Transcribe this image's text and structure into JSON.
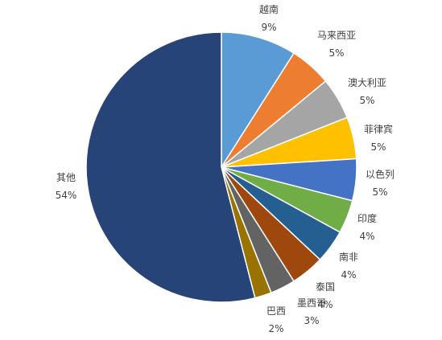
{
  "chart_data": {
    "type": "pie",
    "title": "",
    "slices": [
      {
        "label": "越南",
        "value": 9,
        "value_label": "9%",
        "color": "#5B9BD5"
      },
      {
        "label": "马来西亚",
        "value": 5,
        "value_label": "5%",
        "color": "#ED7D31"
      },
      {
        "label": "澳大利亚",
        "value": 5,
        "value_label": "5%",
        "color": "#A5A5A5"
      },
      {
        "label": "菲律宾",
        "value": 5,
        "value_label": "5%",
        "color": "#FFC000"
      },
      {
        "label": "以色列",
        "value": 5,
        "value_label": "5%",
        "color": "#4472C4"
      },
      {
        "label": "印度",
        "value": 4,
        "value_label": "4%",
        "color": "#70AD47"
      },
      {
        "label": "南非",
        "value": 4,
        "value_label": "4%",
        "color": "#255E91"
      },
      {
        "label": "泰国",
        "value": 4,
        "value_label": "4%",
        "color": "#9E480E"
      },
      {
        "label": "墨西哥",
        "value": 3,
        "value_label": "3%",
        "color": "#636363"
      },
      {
        "label": "巴西",
        "value": 2,
        "value_label": "2%",
        "color": "#997300"
      },
      {
        "label": "其他",
        "value": 54,
        "value_label": "54%",
        "color": "#264478"
      }
    ],
    "start_at": "12 o'clock",
    "direction": "clockwise",
    "legend": "none",
    "labels": "outside, category name above percentage"
  }
}
